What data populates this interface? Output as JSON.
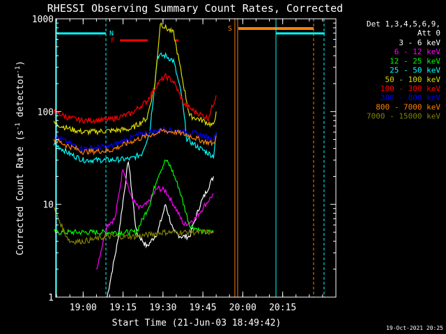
{
  "chart_data": {
    "type": "line",
    "title": "RHESSI Observing Summary Count Rates, Corrected",
    "xlabel": "Start Time (21-Jun-03 18:49:42)",
    "ylabel": "Corrected Count Rate (s⁻¹ detector⁻¹)",
    "ylabel_parts": {
      "a": "Corrected Count Rate (s",
      "sup1": "-1",
      "b": " detector",
      "sup2": "-1",
      "c": ")"
    },
    "yscale": "log",
    "ylim": [
      1,
      1000
    ],
    "xlim": [
      "18:49:42",
      "20:35:00"
    ],
    "xticks": [
      "19:00",
      "19:15",
      "19:30",
      "19:45",
      "20:00",
      "20:15"
    ],
    "yticks": [
      "1",
      "10",
      "100",
      "1000"
    ],
    "legend": {
      "placement": "right",
      "header1": "Det 1,3,4,5,6,9,",
      "header2": "Att 0",
      "entries": [
        {
          "label": "3 - 6 keV",
          "color": "#ffffff"
        },
        {
          "label": "6 - 12 keV",
          "color": "#ff00ff"
        },
        {
          "label": "12 - 25 keV",
          "color": "#00ff00"
        },
        {
          "label": "25 - 50 keV",
          "color": "#00ffff"
        },
        {
          "label": "50 - 100 keV",
          "color": "#dddd00"
        },
        {
          "label": "100 - 300 keV",
          "color": "#ff0000"
        },
        {
          "label": "300 - 800 keV",
          "color": "#0000ff"
        },
        {
          "label": "800 - 7000 keV",
          "color": "#ff8000"
        },
        {
          "label": "7000 - 15000 keV",
          "color": "#808000"
        }
      ]
    },
    "flags": [
      {
        "label": "N",
        "color": "#00ffff"
      },
      {
        "label": "F",
        "color": "#ff0000"
      },
      {
        "label": "S",
        "color": "#ff8000"
      }
    ],
    "series": [
      {
        "name": "3 - 6 keV",
        "color": "#ffffff",
        "x": [
          "19:09",
          "19:13",
          "19:17",
          "19:20",
          "19:24",
          "19:28",
          "19:31",
          "19:34",
          "19:37",
          "19:40",
          "19:44",
          "19:49"
        ],
        "y": [
          1,
          4,
          30,
          5,
          3.5,
          5,
          10,
          5,
          4.5,
          4.5,
          10,
          20
        ]
      },
      {
        "name": "6 - 12 keV",
        "color": "#ff00ff",
        "x": [
          "19:05",
          "19:09",
          "19:12",
          "19:15",
          "19:18",
          "19:21",
          "19:24",
          "19:28",
          "19:31",
          "19:34",
          "19:38",
          "19:42",
          "19:46",
          "19:49"
        ],
        "y": [
          2,
          6,
          7,
          25,
          12,
          9,
          10,
          15,
          14,
          10,
          6,
          7,
          10,
          13
        ]
      },
      {
        "name": "12 - 25 keV",
        "color": "#00ff00",
        "x": [
          "18:49",
          "18:55",
          "19:00",
          "19:10",
          "19:15",
          "19:20",
          "19:25",
          "19:28",
          "19:31",
          "19:33",
          "19:36",
          "19:40",
          "19:45",
          "19:49"
        ],
        "y": [
          5,
          5,
          5,
          5,
          5,
          5,
          10,
          20,
          30,
          25,
          15,
          6,
          5,
          5
        ]
      },
      {
        "name": "25 - 50 keV",
        "color": "#00ffff",
        "x": [
          "18:49",
          "18:55",
          "19:00",
          "19:10",
          "19:18",
          "19:22",
          "19:25",
          "19:28",
          "19:31",
          "19:34",
          "19:37",
          "19:39",
          "19:44",
          "19:49",
          "19:50"
        ],
        "y": [
          45,
          35,
          30,
          30,
          31,
          35,
          60,
          400,
          400,
          350,
          150,
          50,
          40,
          33,
          60
        ]
      },
      {
        "name": "50 - 100 keV",
        "color": "#dddd00",
        "x": [
          "18:49",
          "18:55",
          "19:00",
          "19:10",
          "19:18",
          "19:24",
          "19:27",
          "19:29",
          "19:31",
          "19:34",
          "19:37",
          "19:40",
          "19:45",
          "19:49",
          "19:50"
        ],
        "y": [
          75,
          65,
          60,
          62,
          65,
          85,
          200,
          900,
          800,
          700,
          250,
          90,
          80,
          70,
          100
        ]
      },
      {
        "name": "100 - 300 keV",
        "color": "#ff0000",
        "x": [
          "18:49",
          "18:55",
          "19:00",
          "19:10",
          "19:18",
          "19:24",
          "19:28",
          "19:31",
          "19:34",
          "19:38",
          "19:42",
          "19:47",
          "19:50"
        ],
        "y": [
          100,
          85,
          80,
          82,
          95,
          130,
          200,
          240,
          210,
          120,
          100,
          85,
          150
        ]
      },
      {
        "name": "300 - 800 keV",
        "color": "#0000ff",
        "x": [
          "18:49",
          "18:55",
          "19:00",
          "19:10",
          "19:20",
          "19:30",
          "19:35",
          "19:40",
          "19:45",
          "19:49",
          "19:50"
        ],
        "y": [
          55,
          45,
          40,
          42,
          55,
          65,
          62,
          60,
          55,
          50,
          60
        ]
      },
      {
        "name": "800 - 7000 keV",
        "color": "#ff8000",
        "x": [
          "18:49",
          "18:55",
          "19:00",
          "19:10",
          "19:20",
          "19:30",
          "19:35",
          "19:40",
          "19:45",
          "19:49",
          "19:50"
        ],
        "y": [
          50,
          42,
          37,
          38,
          50,
          62,
          60,
          55,
          48,
          45,
          55
        ]
      },
      {
        "name": "7000 - 15000 keV",
        "color": "#808000",
        "x": [
          "18:49",
          "18:53",
          "18:55",
          "19:00",
          "19:10",
          "19:20",
          "19:30",
          "19:35",
          "19:40",
          "19:45",
          "19:49"
        ],
        "y": [
          9,
          5,
          4,
          4,
          4.5,
          4.5,
          5,
          5,
          5,
          5,
          5
        ]
      }
    ]
  },
  "footer": {
    "timestamp": "19-Oct-2021 20:25"
  }
}
